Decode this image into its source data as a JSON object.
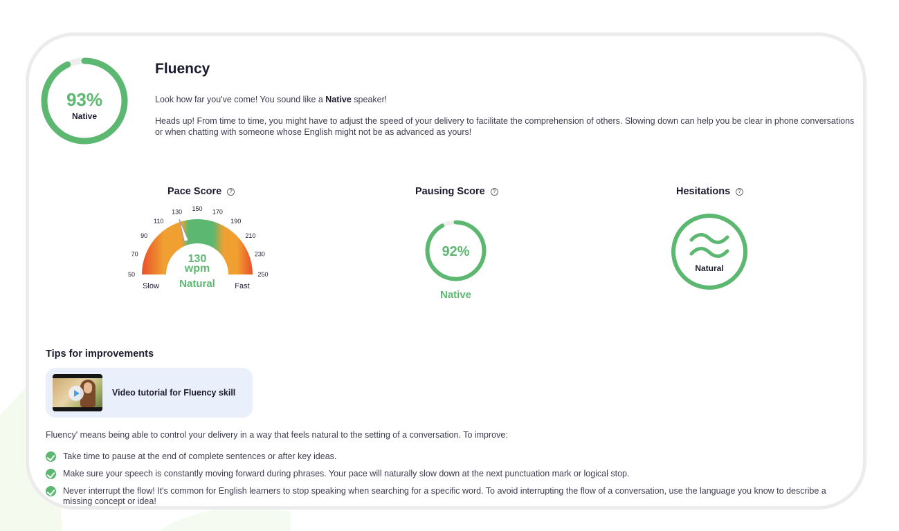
{
  "overall": {
    "percent_label": "93%",
    "level_label": "Native",
    "progress": 0.93
  },
  "header": {
    "title": "Fluency",
    "line1_prefix": "Look how far you've come! You sound like a ",
    "line1_bold": "Native",
    "line1_suffix": " speaker!",
    "line2": "Heads up! From time to time, you might have to adjust the speed of your delivery to facilitate the comprehension of others. Slowing down can help you be clear in phone conversations or when chatting with someone whose English might not be as advanced as yours!"
  },
  "pace": {
    "title": "Pace Score",
    "help_icon": "question-circle-icon",
    "ticks": [
      "50",
      "70",
      "90",
      "110",
      "130",
      "150",
      "170",
      "190",
      "210",
      "230",
      "250"
    ],
    "value": 130,
    "value_label": "130",
    "unit": "wpm",
    "status": "Natural",
    "min_label": "Slow",
    "max_label": "Fast"
  },
  "pausing": {
    "title": "Pausing Score",
    "help_icon": "question-circle-icon",
    "percent_label": "92%",
    "progress": 0.92,
    "status": "Native"
  },
  "hesitations": {
    "title": "Hesitations",
    "help_icon": "question-circle-icon",
    "icon": "wave-icon",
    "status": "Natural"
  },
  "tips": {
    "title": "Tips for improvements",
    "video_label": "Video tutorial for Fluency skill",
    "intro": "Fluency' means being able to control your delivery in a way that feels natural to the setting of a conversation. To improve:",
    "items": [
      "Take time to pause at the end of complete sentences or after key ideas.",
      "Make sure your speech is constantly moving forward during phrases. Your pace will naturally slow down at the next punctuation mark or logical stop.",
      "Never interrupt the flow! It's common for English learners to stop speaking when searching for a specific word. To avoid interrupting the flow of a conversation, use the language you know to describe a missing concept or idea!"
    ]
  },
  "colors": {
    "green": "#5cb870",
    "orange": "#f0a030",
    "red": "#e8502a",
    "ring_bg": "#eeeeee",
    "card_border": "#ececec"
  }
}
